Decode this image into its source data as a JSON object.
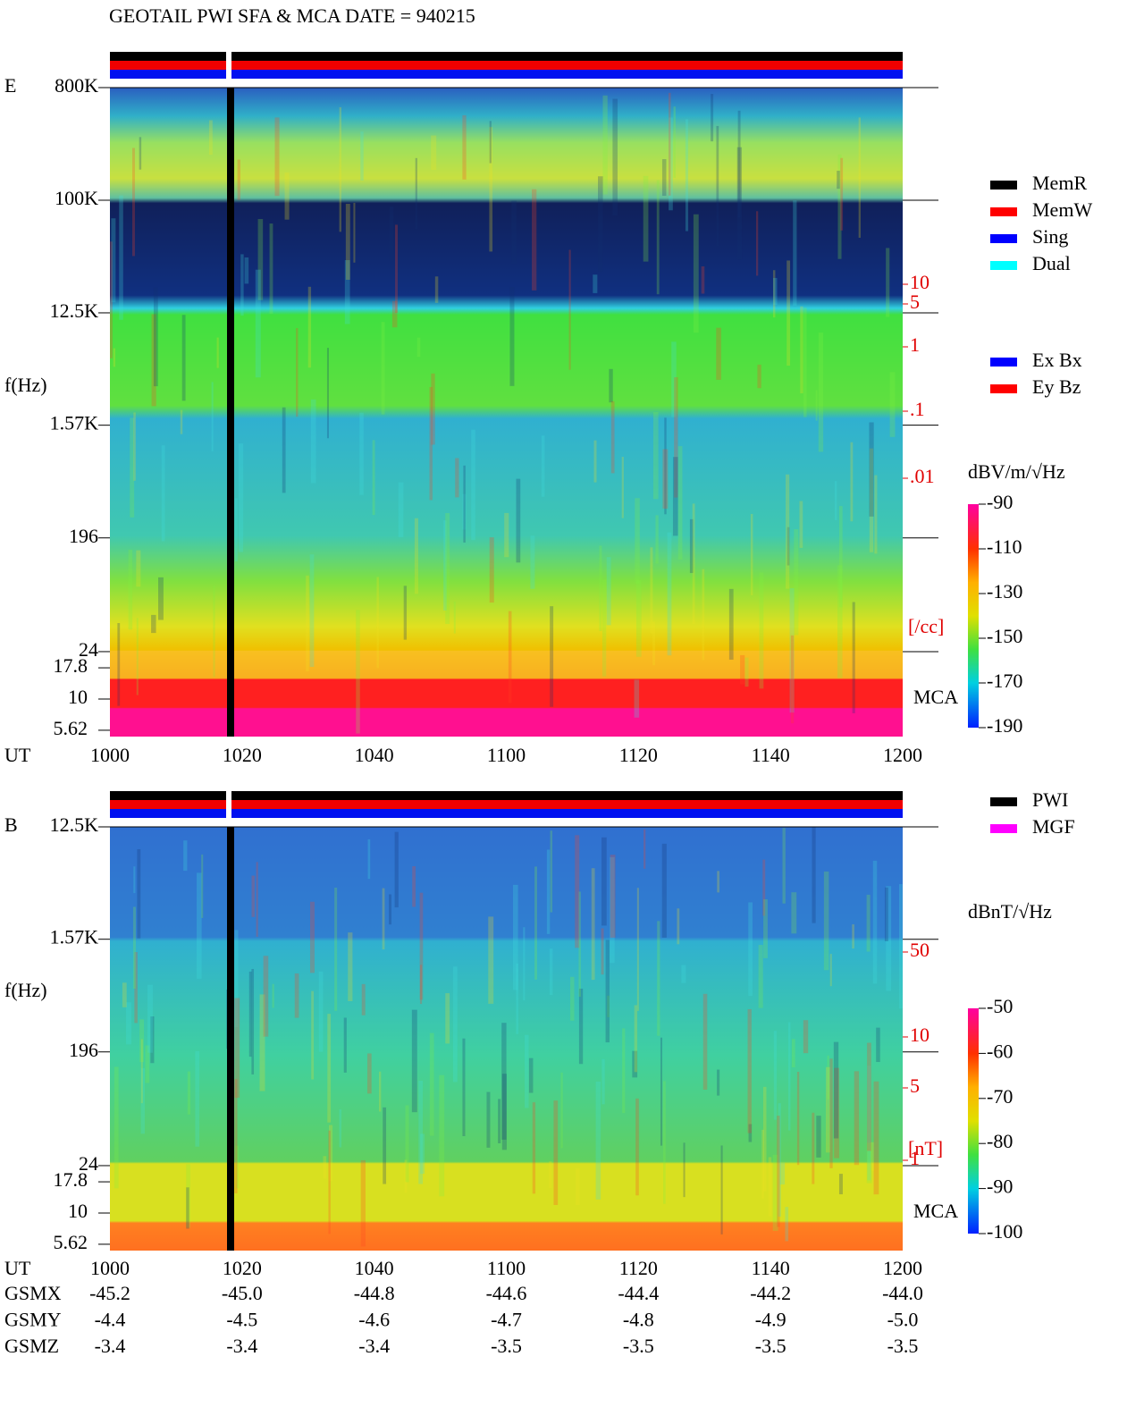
{
  "title": "GEOTAIL  PWI SFA & MCA   DATE = 940215",
  "legend_mode": [
    {
      "name": "MemR",
      "color": "#000000"
    },
    {
      "name": "MemW",
      "color": "#ff0000"
    },
    {
      "name": "Sing",
      "color": "#0000ff"
    },
    {
      "name": "Dual",
      "color": "#00ffff"
    }
  ],
  "legend_component": [
    {
      "name": "Ex Bx",
      "color": "#0000ff"
    },
    {
      "name": "Ey Bz",
      "color": "#ff0000"
    }
  ],
  "legend_source": [
    {
      "name": "PWI",
      "color": "#000000"
    },
    {
      "name": "MGF",
      "color": "#ff00ff"
    }
  ],
  "chart_data": [
    {
      "type": "spectrogram",
      "panel_label": "E",
      "y_label": "f(Hz)",
      "x_label": "UT",
      "x_tick_labels": [
        "1000",
        "1020",
        "1040",
        "1100",
        "1120",
        "1140",
        "1200"
      ],
      "log_y": true,
      "ylim": [
        5,
        800000
      ],
      "yticks": [
        {
          "value": 800000,
          "label": "800K"
        },
        {
          "value": 100000,
          "label": "100K"
        },
        {
          "value": 12500,
          "label": "12.5K"
        },
        {
          "value": 1570,
          "label": "1.57K"
        },
        196,
        24
      ],
      "mca_yticks": [
        17.8,
        10,
        5.62
      ],
      "mca_label": "MCA",
      "colorbar": {
        "label": "dBV/m/√Hz",
        "clim": [
          -190,
          -90
        ],
        "ticks": [
          -90,
          -110,
          -130,
          -150,
          -170,
          -190
        ]
      },
      "density_scale": {
        "ticks": [
          "10",
          "5",
          "1",
          ".1",
          ".01"
        ],
        "unit": "[/cc]"
      }
    },
    {
      "type": "spectrogram",
      "panel_label": "B",
      "y_label": "f(Hz)",
      "x_label": "UT",
      "x_tick_labels": [
        "1000",
        "1020",
        "1040",
        "1100",
        "1120",
        "1140",
        "1200"
      ],
      "log_y": true,
      "ylim": [
        5,
        12500
      ],
      "yticks": [
        {
          "value": 12500,
          "label": "12.5K"
        },
        {
          "value": 1570,
          "label": "1.57K"
        },
        196,
        24
      ],
      "mca_yticks": [
        17.8,
        10,
        5.62
      ],
      "mca_label": "MCA",
      "colorbar": {
        "label": "dBnT/√Hz",
        "clim": [
          -100,
          -50
        ],
        "ticks": [
          -50,
          -60,
          -70,
          -80,
          -90,
          -100
        ]
      },
      "density_scale": {
        "ticks": [
          "50",
          "10",
          "5",
          "1"
        ],
        "unit": "[nT]"
      }
    }
  ],
  "orbit": [
    {
      "label": "GSMX",
      "values": [
        "-45.2",
        "-45.0",
        "-44.8",
        "-44.6",
        "-44.4",
        "-44.2",
        "-44.0"
      ]
    },
    {
      "label": "GSMY",
      "values": [
        "-4.4",
        "-4.5",
        "-4.6",
        "-4.7",
        "-4.8",
        "-4.9",
        "-5.0"
      ]
    },
    {
      "label": "GSMZ",
      "values": [
        "-3.4",
        "-3.4",
        "-3.4",
        "-3.5",
        "-3.5",
        "-3.5",
        "-3.5"
      ]
    }
  ]
}
